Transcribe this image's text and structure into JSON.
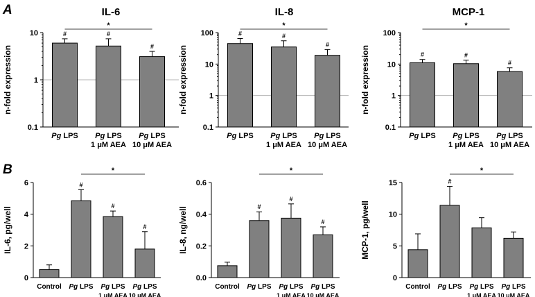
{
  "panel_labels": [
    "A",
    "B"
  ],
  "chart_data": [
    {
      "type": "bar",
      "panel": "A",
      "title": "IL-6",
      "ylabel": "n-fold expression",
      "scale": "log",
      "ylim": [
        0.1,
        10
      ],
      "yticks": [
        "0.1",
        "1",
        "10"
      ],
      "reference_line": 1,
      "categories": [
        {
          "italic": "Pg",
          "rest": " LPS",
          "line2": ""
        },
        {
          "italic": "Pg",
          "rest": " LPS",
          "line2": "1 μM AEA"
        },
        {
          "italic": "Pg",
          "rest": " LPS",
          "line2": "10 μM AEA"
        }
      ],
      "values": [
        6.0,
        5.2,
        3.1
      ],
      "errors": [
        1.4,
        2.2,
        0.9
      ],
      "marks": [
        "#",
        "#",
        "#"
      ],
      "significance": {
        "from": 0,
        "to": 2,
        "label": "*"
      }
    },
    {
      "type": "bar",
      "panel": "A",
      "title": "IL-8",
      "ylabel": "n-fold expression",
      "scale": "log",
      "ylim": [
        0.1,
        100
      ],
      "yticks": [
        "0.1",
        "1",
        "10",
        "100"
      ],
      "reference_line": 1,
      "categories": [
        {
          "italic": "Pg",
          "rest": " LPS",
          "line2": ""
        },
        {
          "italic": "Pg",
          "rest": " LPS",
          "line2": "1 μM AEA"
        },
        {
          "italic": "Pg",
          "rest": " LPS",
          "line2": "10 μM AEA"
        }
      ],
      "values": [
        45,
        35,
        19
      ],
      "errors": [
        20,
        20,
        10
      ],
      "marks": [
        "#",
        "#",
        "#"
      ],
      "significance": {
        "from": 0,
        "to": 2,
        "label": "*"
      }
    },
    {
      "type": "bar",
      "panel": "A",
      "title": "MCP-1",
      "ylabel": "n-fold expression",
      "scale": "log",
      "ylim": [
        0.1,
        100
      ],
      "yticks": [
        "0.1",
        "1",
        "10",
        "100"
      ],
      "reference_line": 1,
      "categories": [
        {
          "italic": "Pg",
          "rest": " LPS",
          "line2": ""
        },
        {
          "italic": "Pg",
          "rest": " LPS",
          "line2": "1 μM AEA"
        },
        {
          "italic": "Pg",
          "rest": " LPS",
          "line2": "10 μM AEA"
        }
      ],
      "values": [
        11,
        10.3,
        5.8
      ],
      "errors": [
        3,
        3,
        1.8
      ],
      "marks": [
        "#",
        "#",
        "#"
      ],
      "significance": {
        "from": 0,
        "to": 2,
        "label": "*"
      }
    },
    {
      "type": "bar",
      "panel": "B",
      "title": "",
      "ylabel": "IL-6, pg/well",
      "scale": "linear",
      "ylim": [
        0,
        6
      ],
      "yticks": [
        "0",
        "2",
        "4",
        "6"
      ],
      "categories": [
        {
          "italic": "",
          "rest": "Control",
          "line2": ""
        },
        {
          "italic": "Pg",
          "rest": " LPS",
          "line2": ""
        },
        {
          "italic": "Pg",
          "rest": " LPS",
          "line2": "1 μM AEA"
        },
        {
          "italic": "Pg",
          "rest": " LPS",
          "line2": "10 μM AEA"
        }
      ],
      "values": [
        0.5,
        4.85,
        3.85,
        1.8
      ],
      "errors": [
        0.3,
        0.7,
        0.35,
        1.1
      ],
      "marks": [
        "",
        "#",
        "#",
        "#"
      ],
      "significance": {
        "from": 1,
        "to": 3,
        "label": "*"
      }
    },
    {
      "type": "bar",
      "panel": "B",
      "title": "",
      "ylabel": "IL-8, ng/well",
      "scale": "linear",
      "ylim": [
        0,
        0.6
      ],
      "yticks": [
        "0.0",
        "0.2",
        "0.4",
        "0.6"
      ],
      "categories": [
        {
          "italic": "",
          "rest": "Control",
          "line2": ""
        },
        {
          "italic": "Pg",
          "rest": " LPS",
          "line2": ""
        },
        {
          "italic": "Pg",
          "rest": " LPS",
          "line2": "1 μM AEA"
        },
        {
          "italic": "Pg",
          "rest": " LPS",
          "line2": "10 μM AEA"
        }
      ],
      "values": [
        0.075,
        0.36,
        0.375,
        0.27
      ],
      "errors": [
        0.022,
        0.055,
        0.09,
        0.05
      ],
      "marks": [
        "",
        "#",
        "#",
        "#"
      ],
      "significance": {
        "from": 1,
        "to": 3,
        "label": "*"
      }
    },
    {
      "type": "bar",
      "panel": "B",
      "title": "",
      "ylabel": "MCP-1, pg/well",
      "scale": "linear",
      "ylim": [
        0,
        15
      ],
      "yticks": [
        "0",
        "5",
        "10",
        "15"
      ],
      "categories": [
        {
          "italic": "",
          "rest": "Control",
          "line2": ""
        },
        {
          "italic": "Pg",
          "rest": " LPS",
          "line2": ""
        },
        {
          "italic": "Pg",
          "rest": " LPS",
          "line2": "1 μM AEA"
        },
        {
          "italic": "Pg",
          "rest": " LPS",
          "line2": "10 μM AEA"
        }
      ],
      "values": [
        4.4,
        11.4,
        7.85,
        6.2
      ],
      "errors": [
        2.5,
        3.0,
        1.6,
        1.0
      ],
      "marks": [
        "",
        "#",
        "",
        ""
      ],
      "significance": {
        "from": 1,
        "to": 3,
        "label": "*"
      }
    }
  ]
}
